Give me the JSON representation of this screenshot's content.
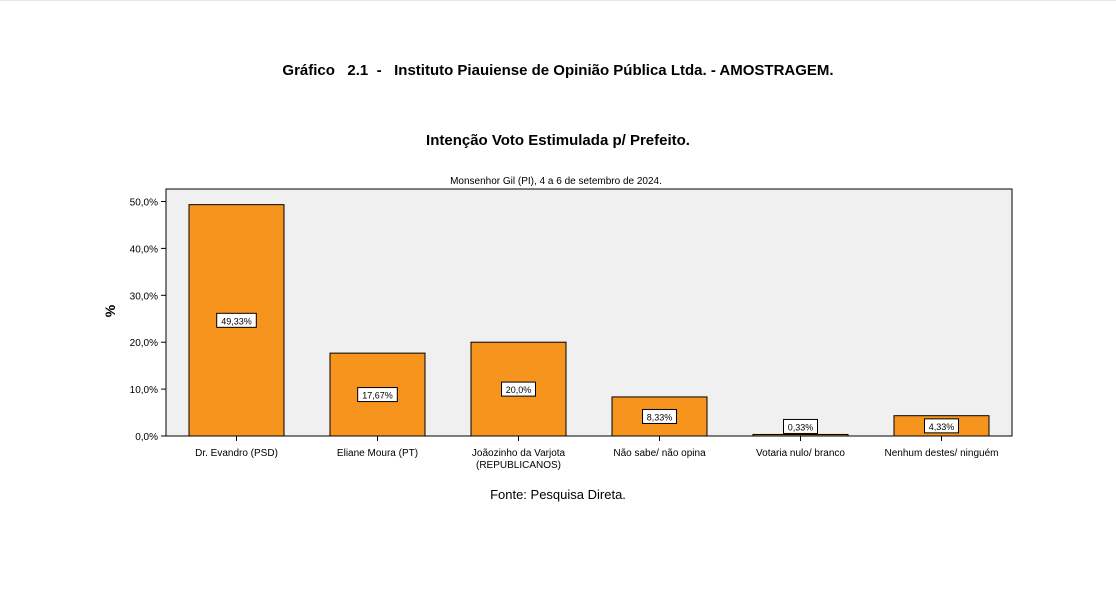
{
  "page": {
    "header": "Gráfico   2.1  -   Instituto Piauiense de Opinião Pública Ltda. - AMOSTRAGEM.",
    "source": "Fonte: Pesquisa Direta."
  },
  "chart_data": {
    "type": "bar",
    "title": "Intenção Voto Estimulada p/ Prefeito.",
    "subtitle": "Monsenhor Gil (PI), 4 a 6 de setembro de 2024.",
    "xlabel": "",
    "ylabel": "%",
    "ylim": [
      0,
      50
    ],
    "yticks": [
      0,
      10,
      20,
      30,
      40,
      50
    ],
    "ytick_labels": [
      "0,0%",
      "10,0%",
      "20,0%",
      "30,0%",
      "40,0%",
      "50,0%"
    ],
    "categories": [
      [
        "Dr. Evandro (PSD)"
      ],
      [
        "Eliane Moura (PT)"
      ],
      [
        "Joãozinho da Varjota",
        "(REPUBLICANOS)"
      ],
      [
        "Não sabe/ não opina"
      ],
      [
        "Votaria nulo/ branco"
      ],
      [
        "Nenhum destes/ ninguém"
      ]
    ],
    "values": [
      49.33,
      17.67,
      20.0,
      8.33,
      0.33,
      4.33
    ],
    "data_labels": [
      "49,33%",
      "17,67%",
      "20,0%",
      "8,33%",
      "0,33%",
      "4,33%"
    ],
    "bar_color": "#f7941d",
    "plot_background": "#f0f0f0",
    "grid": false,
    "legend": "none"
  }
}
